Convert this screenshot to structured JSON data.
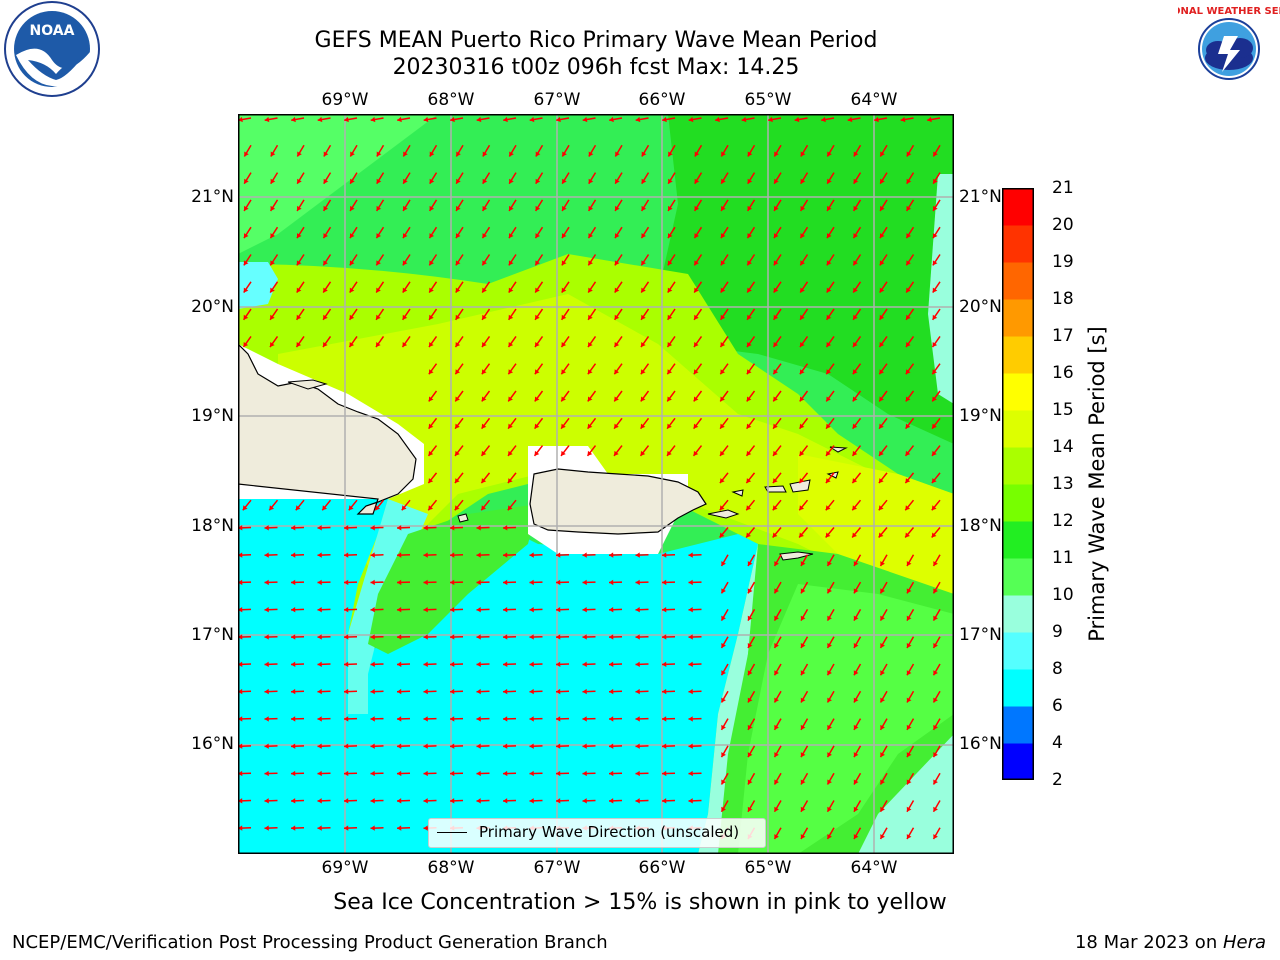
{
  "title": {
    "line1": "GEFS MEAN Puerto Rico Primary Wave Mean Period",
    "line2": "20230316 t00z 096h fcst   Max: 14.25"
  },
  "logos": {
    "left": {
      "icon": "noaa-logo-icon",
      "text": "NOAA"
    },
    "right": {
      "icon": "nws-logo-icon",
      "text": "NATIONAL WEATHER SERVICE"
    }
  },
  "map": {
    "lon_labels": [
      "69°W",
      "68°W",
      "67°W",
      "66°W",
      "65°W",
      "64°W"
    ],
    "lat_labels": [
      "21°N",
      "20°N",
      "19°N",
      "18°N",
      "17°N",
      "16°N"
    ],
    "extent": {
      "lon_min": -70.0,
      "lon_max": -63.25,
      "lat_min": 15.0,
      "lat_max": 21.75
    },
    "arrow_color": "#ff0000",
    "land_color": "#efecdc"
  },
  "colorbar": {
    "title": "Primary Wave Mean Period [s]",
    "labels": [
      "21",
      "20",
      "19",
      "18",
      "17",
      "16",
      "15",
      "14",
      "13",
      "12",
      "11",
      "10",
      "9",
      "8",
      "6",
      "4",
      "2"
    ],
    "colors": [
      "#0000ff",
      "#0077ff",
      "#00ffff",
      "#55ffff",
      "#99ffdd",
      "#55ff55",
      "#22ee22",
      "#77ff00",
      "#aaff00",
      "#ddff00",
      "#ffff00",
      "#ffcc00",
      "#ff9900",
      "#ff6600",
      "#ff3300",
      "#ff0000"
    ]
  },
  "legend": {
    "label": "Primary Wave Direction (unscaled)"
  },
  "subtitle": "Sea Ice Concentration > 15% is shown in pink to yellow",
  "footer": {
    "left": "NCEP/EMC/Verification Post Processing Product Generation Branch",
    "right_prefix": "18 Mar 2023 on ",
    "right_italic": "Hera"
  }
}
